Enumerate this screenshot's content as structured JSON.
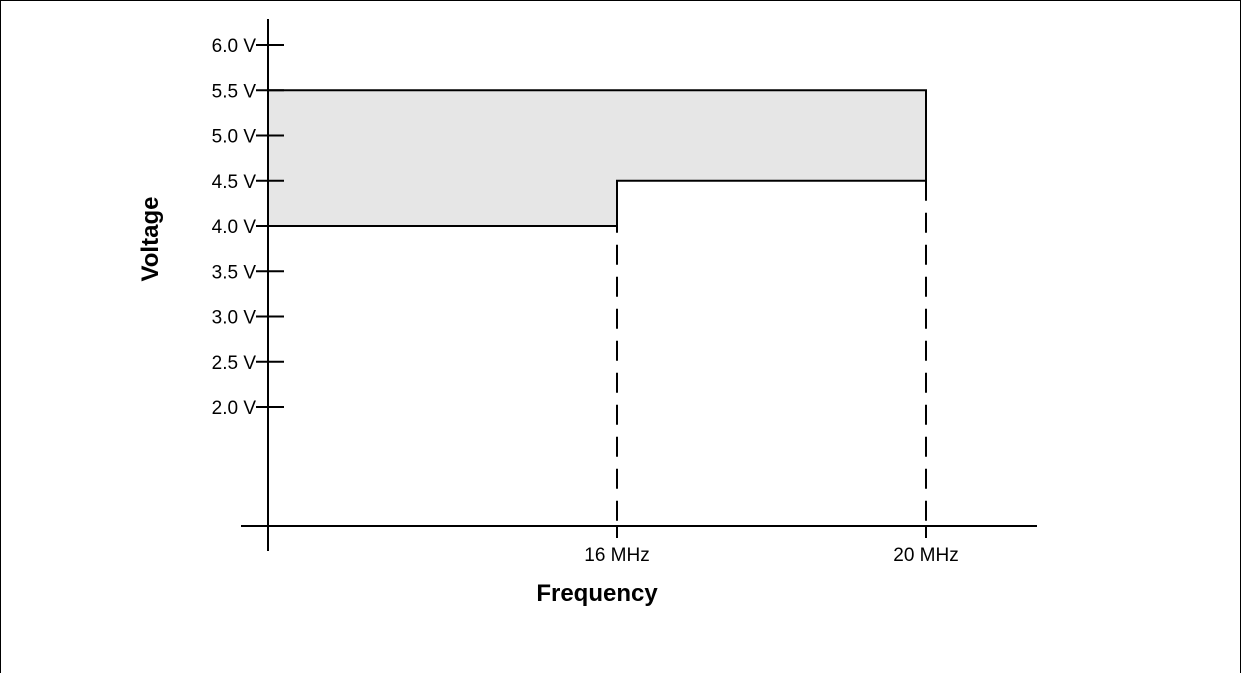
{
  "chart_data": {
    "type": "area",
    "title": "",
    "xlabel": "Frequency",
    "ylabel": "Voltage",
    "y_ticks": [
      {
        "value": 6.0,
        "label": "6.0 V"
      },
      {
        "value": 5.5,
        "label": "5.5 V"
      },
      {
        "value": 5.0,
        "label": "5.0 V"
      },
      {
        "value": 4.5,
        "label": "4.5 V"
      },
      {
        "value": 4.0,
        "label": "4.0 V"
      },
      {
        "value": 3.5,
        "label": "3.5 V"
      },
      {
        "value": 3.0,
        "label": "3.0 V"
      },
      {
        "value": 2.5,
        "label": "2.5 V"
      },
      {
        "value": 2.0,
        "label": "2.0 V"
      }
    ],
    "x_ticks": [
      {
        "value": 16,
        "label": "16 MHz"
      },
      {
        "value": 20,
        "label": "20 MHz"
      }
    ],
    "safe_region": {
      "upper": [
        {
          "x": 0,
          "y": 5.5
        },
        {
          "x": 20,
          "y": 5.5
        }
      ],
      "lower": [
        {
          "x": 0,
          "y": 4.0
        },
        {
          "x": 16,
          "y": 4.0
        },
        {
          "x": 16,
          "y": 4.5
        },
        {
          "x": 20,
          "y": 4.5
        }
      ]
    },
    "dashed_guides": [
      16,
      20
    ],
    "fill_color": "#e6e6e6",
    "line_color": "#000000",
    "grid": false
  }
}
